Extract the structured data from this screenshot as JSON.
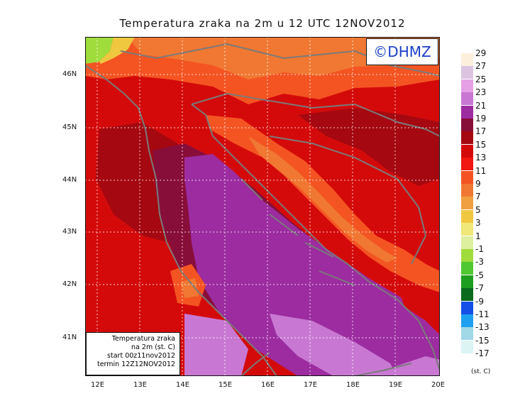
{
  "title": "Temperatura zraka na 2m u 12 UTC 12NOV2012",
  "logo": "©DHMZ",
  "lat_labels": [
    "46N",
    "45N",
    "44N",
    "43N",
    "42N",
    "41N"
  ],
  "lon_labels": [
    "12E",
    "13E",
    "14E",
    "15E",
    "16E",
    "17E",
    "18E",
    "19E",
    "20E"
  ],
  "info_box": {
    "line1": "Temperatura zraka",
    "line2": "na 2m (st. C)",
    "line3": "start 00z11nov2012",
    "line4": "termin 12Z12NOV2012"
  },
  "legend": {
    "labels": [
      "29",
      "27",
      "25",
      "23",
      "21",
      "19",
      "17",
      "15",
      "13",
      "11",
      "9",
      "7",
      "5",
      "3",
      "1",
      "-1",
      "-3",
      "-5",
      "-7",
      "-9",
      "-11",
      "-13",
      "-15",
      "-17"
    ],
    "colors": [
      "#fcefdc",
      "#dcc4e0",
      "#e6a0e6",
      "#c878d2",
      "#9c2ca0",
      "#880e3a",
      "#a50810",
      "#d40a0a",
      "#f01810",
      "#f45422",
      "#f07832",
      "#f0a040",
      "#f0c840",
      "#f0e878",
      "#dcf0a0",
      "#a0dc3c",
      "#50c832",
      "#1e9e1e",
      "#0a6a1e",
      "#1450e6",
      "#1ea0f0",
      "#a0d8e6",
      "#dcf4f4"
    ],
    "unit": "(st. C)"
  },
  "map": {
    "lat_range": [
      40.3,
      46.8
    ],
    "lon_range": [
      11.7,
      20.0
    ],
    "colors": {
      "warm_sea": "#880e3a",
      "dark_red": "#a50810",
      "red": "#d40a0a",
      "orange_red": "#f01810",
      "orange": "#f45422",
      "light_orange": "#f07832",
      "yellow": "#f0c840",
      "light_green": "#a0dc3c",
      "purple": "#9c2ca0",
      "violet": "#c878d2",
      "coastline": "#7a7a7a",
      "grid": "#ffffff"
    }
  }
}
